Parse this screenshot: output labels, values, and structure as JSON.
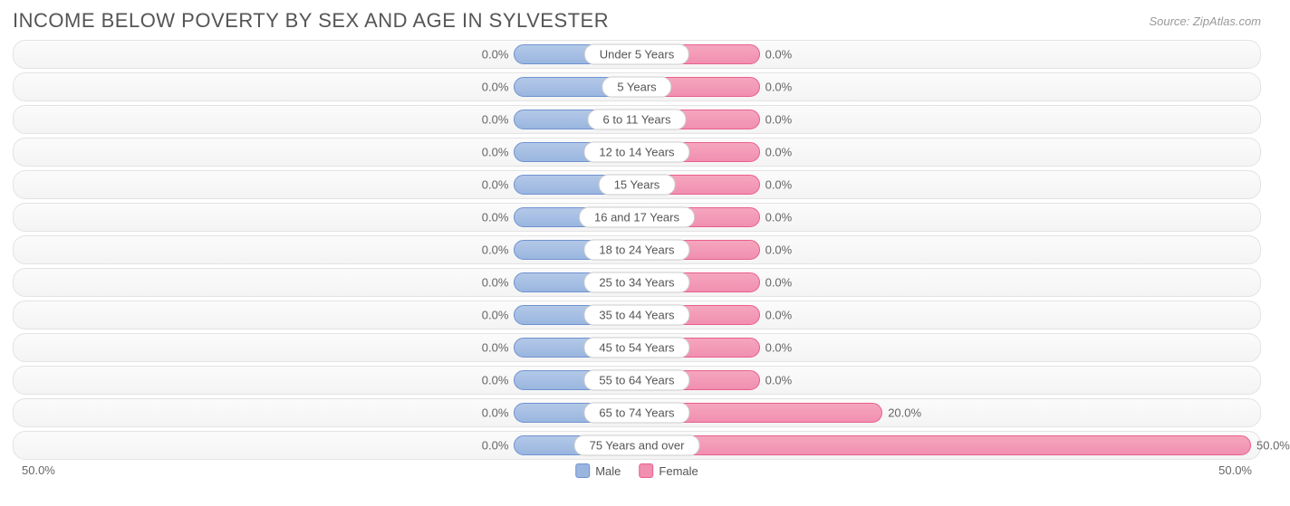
{
  "title": "INCOME BELOW POVERTY BY SEX AND AGE IN SYLVESTER",
  "source": "Source: ZipAtlas.com",
  "chart": {
    "type": "diverging-bar",
    "max_percent": 50.0,
    "min_bar_percent": 10.0,
    "axis_left_label": "50.0%",
    "axis_right_label": "50.0%",
    "male_color": "#9ab6df",
    "male_border": "#6f93cf",
    "female_color": "#f18fb0",
    "female_border": "#e95f8a",
    "row_bg": "#f6f6f6",
    "row_border": "#e3e3e3",
    "text_color": "#666666",
    "title_color": "#555555",
    "categories": [
      {
        "label": "Under 5 Years",
        "male": 0.0,
        "female": 0.0
      },
      {
        "label": "5 Years",
        "male": 0.0,
        "female": 0.0
      },
      {
        "label": "6 to 11 Years",
        "male": 0.0,
        "female": 0.0
      },
      {
        "label": "12 to 14 Years",
        "male": 0.0,
        "female": 0.0
      },
      {
        "label": "15 Years",
        "male": 0.0,
        "female": 0.0
      },
      {
        "label": "16 and 17 Years",
        "male": 0.0,
        "female": 0.0
      },
      {
        "label": "18 to 24 Years",
        "male": 0.0,
        "female": 0.0
      },
      {
        "label": "25 to 34 Years",
        "male": 0.0,
        "female": 0.0
      },
      {
        "label": "35 to 44 Years",
        "male": 0.0,
        "female": 0.0
      },
      {
        "label": "45 to 54 Years",
        "male": 0.0,
        "female": 0.0
      },
      {
        "label": "55 to 64 Years",
        "male": 0.0,
        "female": 0.0
      },
      {
        "label": "65 to 74 Years",
        "male": 0.0,
        "female": 20.0
      },
      {
        "label": "75 Years and over",
        "male": 0.0,
        "female": 50.0
      }
    ],
    "legend": {
      "male": "Male",
      "female": "Female"
    }
  }
}
